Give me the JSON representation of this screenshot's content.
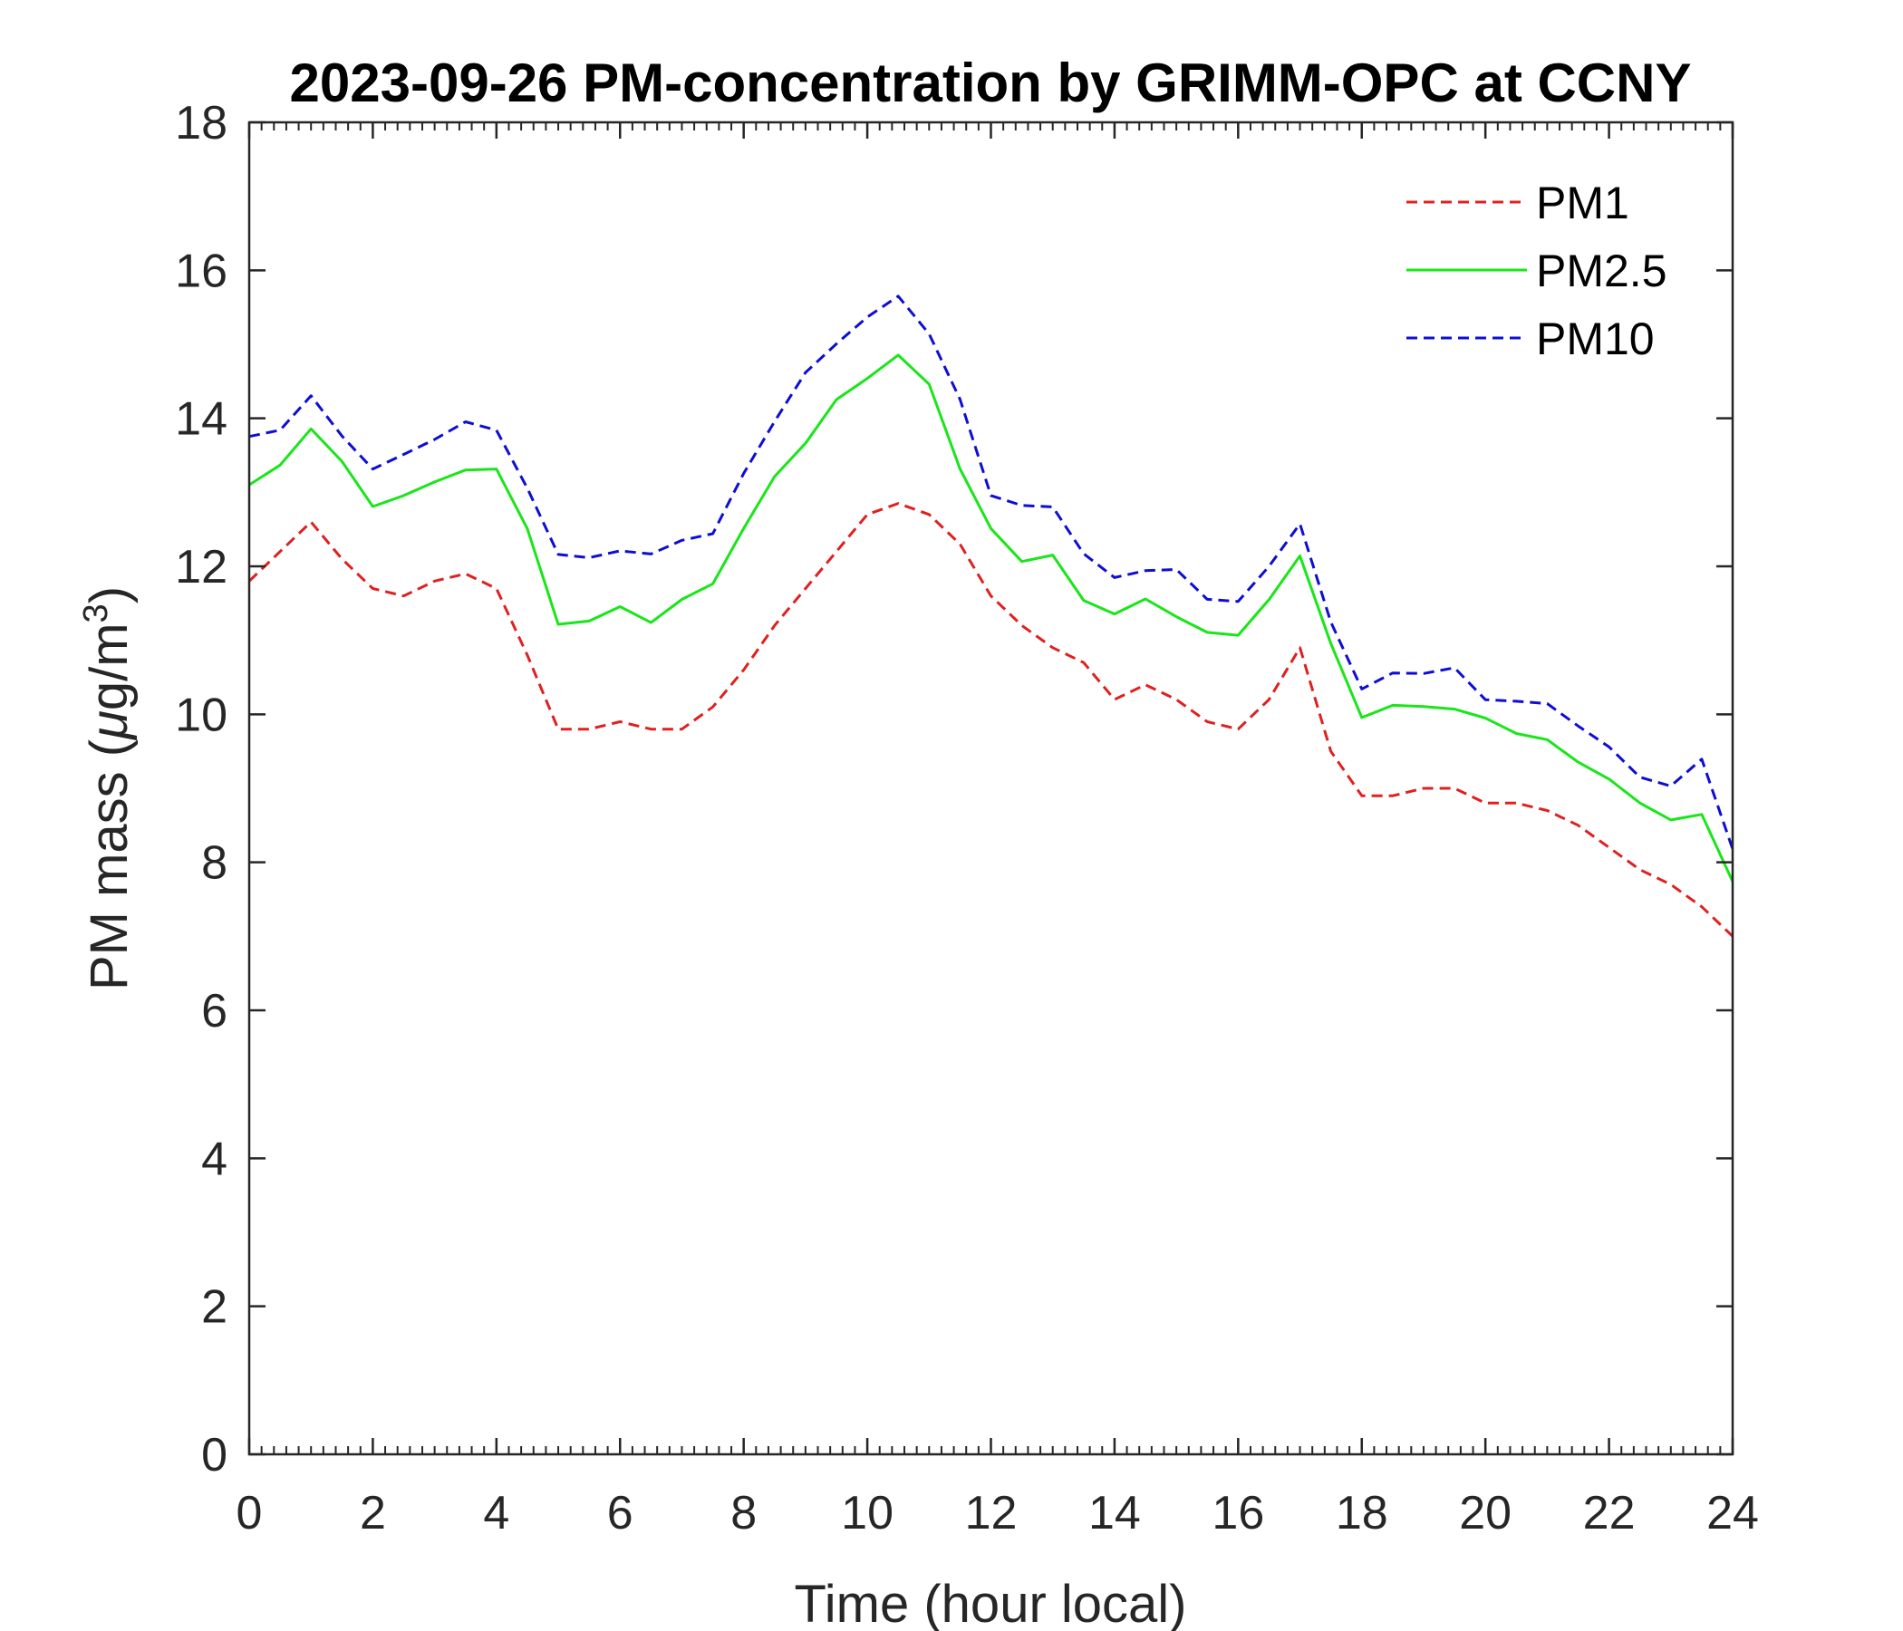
{
  "chart_data": {
    "type": "line",
    "title": "2023-09-26 PM-concentration by GRIMM-OPC at CCNY",
    "xlabel": "Time (hour local)",
    "ylabel_main": "PM mass (",
    "ylabel_mu": "μ",
    "ylabel_unit": "g/m",
    "ylabel_sup": "3",
    "ylabel_close": ")",
    "xlim": [
      0,
      24
    ],
    "ylim": [
      0,
      18
    ],
    "xticks": [
      "0",
      "2",
      "4",
      "6",
      "8",
      "10",
      "12",
      "14",
      "16",
      "18",
      "20",
      "22",
      "24"
    ],
    "yticks": [
      "0",
      "2",
      "4",
      "6",
      "8",
      "10",
      "12",
      "14",
      "16",
      "18"
    ],
    "grid": false,
    "legend_position": "top-right",
    "x": [
      0,
      0.5,
      1,
      1.5,
      2,
      2.5,
      3,
      3.5,
      4,
      4.5,
      5,
      5.5,
      6,
      6.5,
      7,
      7.5,
      8,
      8.5,
      9,
      9.5,
      10,
      10.5,
      11,
      11.5,
      12,
      12.5,
      13,
      13.5,
      14,
      14.5,
      15,
      15.5,
      16,
      16.5,
      17,
      17.5,
      18,
      18.5,
      19,
      19.5,
      20,
      20.5,
      21,
      21.5,
      22,
      22.5,
      23,
      23.5,
      24
    ],
    "series": [
      {
        "name": "PM1",
        "color": "#e02020",
        "dash": "dashed",
        "values": [
          11.8,
          12.2,
          12.6,
          12.1,
          11.7,
          11.6,
          11.8,
          11.9,
          11.7,
          10.8,
          9.8,
          9.8,
          9.9,
          9.8,
          9.8,
          10.1,
          10.6,
          11.2,
          11.7,
          12.2,
          12.7,
          12.85,
          12.7,
          12.3,
          11.6,
          11.2,
          10.9,
          10.7,
          10.2,
          10.4,
          10.2,
          9.9,
          9.8,
          10.2,
          10.9,
          9.5,
          8.9,
          8.9,
          9.0,
          9.0,
          8.8,
          8.8,
          8.7,
          8.5,
          8.2,
          7.9,
          7.7,
          7.4,
          7.0
        ]
      },
      {
        "name": "PM2.5",
        "color": "#19e619",
        "dash": "solid",
        "values": [
          13.05,
          13.4,
          13.85,
          13.4,
          12.85,
          12.9,
          13.2,
          13.25,
          13.35,
          12.5,
          11.2,
          11.3,
          11.4,
          11.3,
          11.5,
          11.8,
          12.5,
          13.2,
          13.7,
          14.2,
          14.6,
          14.8,
          14.5,
          13.3,
          12.5,
          12.1,
          12.1,
          11.6,
          11.3,
          11.6,
          11.3,
          11.1,
          11.1,
          11.5,
          12.2,
          10.9,
          10.0,
          10.1,
          10.1,
          10.1,
          9.9,
          9.8,
          9.6,
          9.4,
          9.1,
          8.8,
          8.6,
          8.6,
          7.8
        ]
      },
      {
        "name": "PM10",
        "color": "#0d0dd6",
        "dash": "dashed",
        "values": [
          13.7,
          13.9,
          14.25,
          13.8,
          13.3,
          13.5,
          13.75,
          13.9,
          13.9,
          13.0,
          12.2,
          12.1,
          12.2,
          12.2,
          12.3,
          12.5,
          13.2,
          14.0,
          14.6,
          15.0,
          15.4,
          15.6,
          15.2,
          14.2,
          13.0,
          12.8,
          12.8,
          12.2,
          11.8,
          12.0,
          11.9,
          11.6,
          11.5,
          12.0,
          12.6,
          11.2,
          10.4,
          10.5,
          10.6,
          10.6,
          10.2,
          10.2,
          10.1,
          9.9,
          9.5,
          9.2,
          9.0,
          9.4,
          8.2
        ]
      }
    ]
  }
}
